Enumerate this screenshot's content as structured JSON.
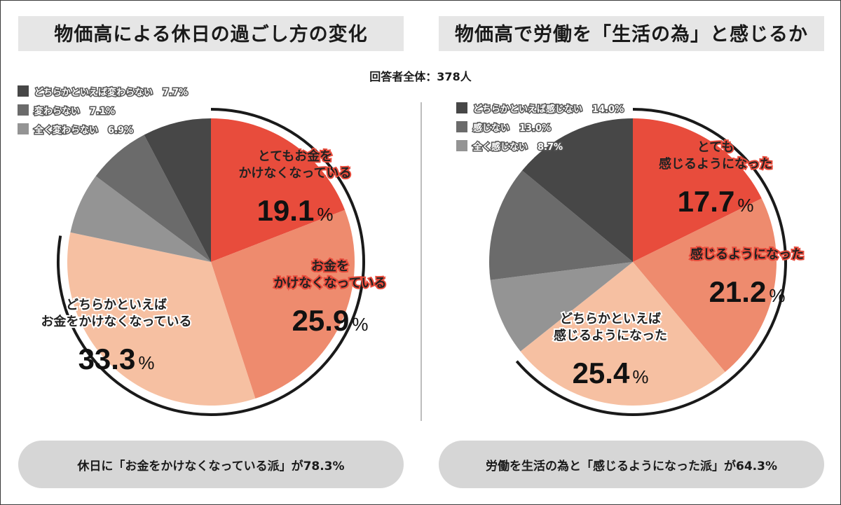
{
  "header": {
    "respondents": "回答者全体：378人"
  },
  "colors": {
    "red": "#e84c3c",
    "salmon": "#ee8b6e",
    "peach": "#f6c0a2",
    "gray_light": "#949494",
    "gray_mid": "#6b6b6b",
    "gray_dark": "#474747",
    "title_bg": "#e6e6e6",
    "pill_bg": "#d6d6d6"
  },
  "chart_data": [
    {
      "type": "pie",
      "title": "物価高による休日の過ごし方の変化",
      "unit": "%",
      "slices": [
        {
          "label_lines": [
            "とてもお金を",
            "かけなくなっている"
          ],
          "value": 19.1,
          "pct_text": "19.1",
          "color": "#e84c3c",
          "highlight": true
        },
        {
          "label_lines": [
            "お金を",
            "かけなくなっている"
          ],
          "value": 25.9,
          "pct_text": "25.9",
          "color": "#ee8b6e",
          "highlight": true
        },
        {
          "label_lines": [
            "どちらかといえば",
            "お金をかけなくなっている"
          ],
          "value": 33.3,
          "pct_text": "33.3",
          "color": "#f6c0a2",
          "highlight": false
        },
        {
          "label_lines": [],
          "value": 6.9,
          "pct_text": "6.9",
          "color": "#949494",
          "highlight": false
        },
        {
          "label_lines": [],
          "value": 7.1,
          "pct_text": "7.1",
          "color": "#6b6b6b",
          "highlight": false
        },
        {
          "label_lines": [],
          "value": 7.7,
          "pct_text": "7.7",
          "color": "#474747",
          "highlight": false
        }
      ],
      "legend": [
        {
          "label": "どちらかといえば変わらない",
          "value": "7.7%",
          "color": "#474747"
        },
        {
          "label": "変わらない",
          "value": "7.1%",
          "color": "#6b6b6b"
        },
        {
          "label": "全く変わらない",
          "value": "6.9%",
          "color": "#949494"
        }
      ],
      "summary": "休日に「お金をかけなくなっている派」が78.3%"
    },
    {
      "type": "pie",
      "title": "物価高で労働を「生活の為」と感じるか",
      "unit": "%",
      "slices": [
        {
          "label_lines": [
            "とても",
            "感じるようになった"
          ],
          "value": 17.7,
          "pct_text": "17.7",
          "color": "#e84c3c",
          "highlight": true
        },
        {
          "label_lines": [
            "感じるようになった"
          ],
          "value": 21.2,
          "pct_text": "21.2",
          "color": "#ee8b6e",
          "highlight": true
        },
        {
          "label_lines": [
            "どちらかといえば",
            "感じるようになった"
          ],
          "value": 25.4,
          "pct_text": "25.4",
          "color": "#f6c0a2",
          "highlight": false
        },
        {
          "label_lines": [],
          "value": 8.7,
          "pct_text": "8.7",
          "color": "#949494",
          "highlight": false
        },
        {
          "label_lines": [],
          "value": 13.0,
          "pct_text": "13.0",
          "color": "#6b6b6b",
          "highlight": false
        },
        {
          "label_lines": [],
          "value": 14.0,
          "pct_text": "14.0",
          "color": "#474747",
          "highlight": false
        }
      ],
      "legend": [
        {
          "label": "どちらかといえば感じない",
          "value": "14.0%",
          "color": "#474747"
        },
        {
          "label": "感じない",
          "value": "13.0%",
          "color": "#6b6b6b"
        },
        {
          "label": "全く感じない",
          "value": "8.7%",
          "color": "#949494"
        }
      ],
      "summary": "労働を生活の為と「感じるようになった派」が64.3%"
    }
  ]
}
